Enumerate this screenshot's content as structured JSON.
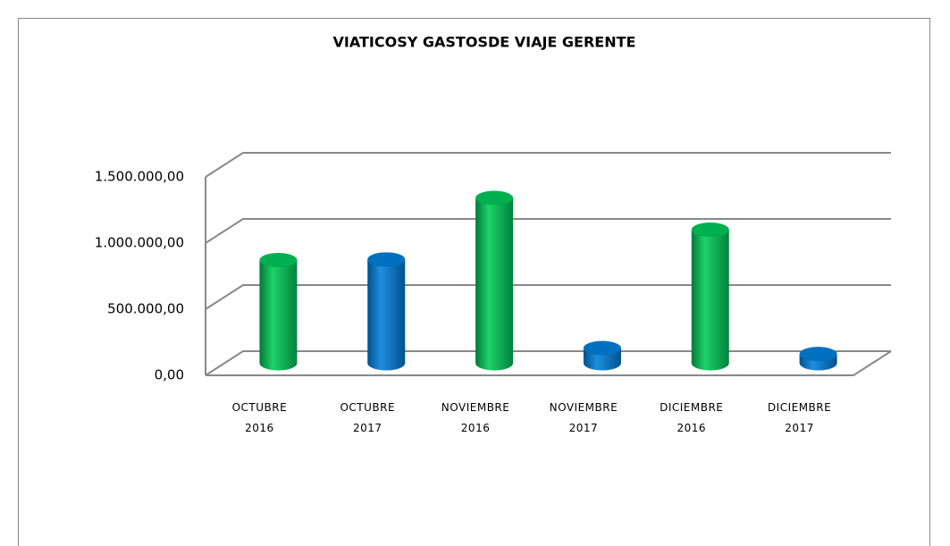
{
  "chart_data": {
    "type": "bar3d",
    "title": "VIATICOSY GASTOSDE VIAJE GERENTE",
    "categories": [
      "OCTUBRE 2016",
      "OCTUBRE 2017",
      "NOVIEMBRE 2016",
      "NOVIEMBRE 2017",
      "DICIEMBRE 2016",
      "DICIEMBRE 2017"
    ],
    "values": [
      780000,
      785000,
      1250000,
      115000,
      1010000,
      70000
    ],
    "colors": [
      "#00b050",
      "#0070c0",
      "#00b050",
      "#0070c0",
      "#00b050",
      "#0070c0"
    ],
    "ylim": [
      0,
      1500000
    ],
    "yticks": [
      {
        "value": 0,
        "label": "0,00"
      },
      {
        "value": 500000,
        "label": "500.000,00"
      },
      {
        "value": 1000000,
        "label": "1.000.000,00"
      },
      {
        "value": 1500000,
        "label": "1.500.000,00"
      }
    ],
    "grid": true
  }
}
